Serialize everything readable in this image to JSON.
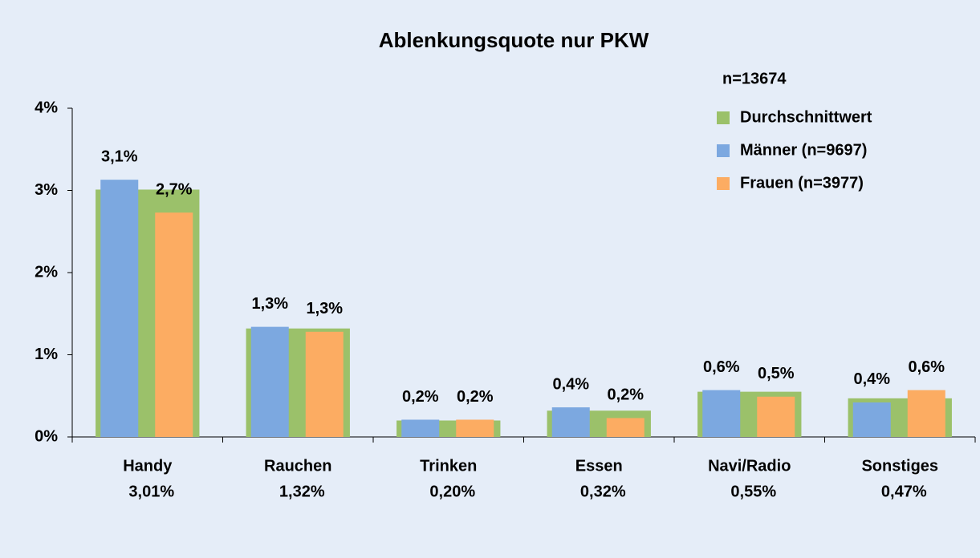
{
  "chart_data": {
    "type": "bar",
    "title": "Ablenkungsquote nur PKW",
    "annotation": "n=13674",
    "categories": [
      "Handy",
      "Rauchen",
      "Trinken",
      "Essen",
      "Navi/Radio",
      "Sonstiges"
    ],
    "series": [
      {
        "name": "Durchschnittwert",
        "color": "#9bc16a",
        "values": [
          3.01,
          1.32,
          0.2,
          0.32,
          0.55,
          0.47
        ],
        "value_labels": [
          "3,01%",
          "1,32%",
          "0,20%",
          "0,32%",
          "0,55%",
          "0,47%"
        ]
      },
      {
        "name": "Männer (n=9697)",
        "color": "#7ca8e0",
        "values": [
          3.13,
          1.34,
          0.21,
          0.36,
          0.57,
          0.42
        ],
        "value_labels": [
          "3,1%",
          "1,3%",
          "0,2%",
          "0,4%",
          "0,6%",
          "0,4%"
        ]
      },
      {
        "name": "Frauen (n=3977)",
        "color": "#fcac62",
        "values": [
          2.73,
          1.28,
          0.21,
          0.23,
          0.49,
          0.57
        ],
        "value_labels": [
          "2,7%",
          "1,3%",
          "0,2%",
          "0,2%",
          "0,5%",
          "0,6%"
        ]
      }
    ],
    "ylim": [
      0,
      4
    ],
    "yticks": [
      {
        "value": 0,
        "label": "0%"
      },
      {
        "value": 1,
        "label": "1%"
      },
      {
        "value": 2,
        "label": "2%"
      },
      {
        "value": 3,
        "label": "3%"
      },
      {
        "value": 4,
        "label": "4%"
      }
    ],
    "legend": "top-right"
  }
}
